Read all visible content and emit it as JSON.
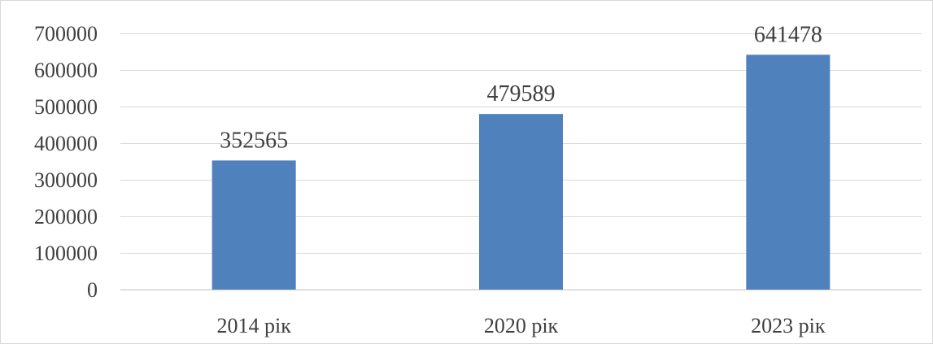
{
  "chart_data": {
    "type": "bar",
    "title": "",
    "xlabel": "",
    "ylabel": "",
    "categories": [
      "2014 рік",
      "2020 рік",
      "2023 рік"
    ],
    "values": [
      352565,
      479589,
      641478
    ],
    "data_labels": [
      "352565",
      "479589",
      "641478"
    ],
    "ylim": [
      0,
      700000
    ],
    "yticks": [
      0,
      100000,
      200000,
      300000,
      400000,
      500000,
      600000,
      700000
    ],
    "ytick_labels": [
      "0",
      "100000",
      "200000",
      "300000",
      "400000",
      "500000",
      "600000",
      "700000"
    ],
    "grid": true,
    "legend": "none",
    "colors": {
      "bar": "#4f81bd"
    }
  }
}
